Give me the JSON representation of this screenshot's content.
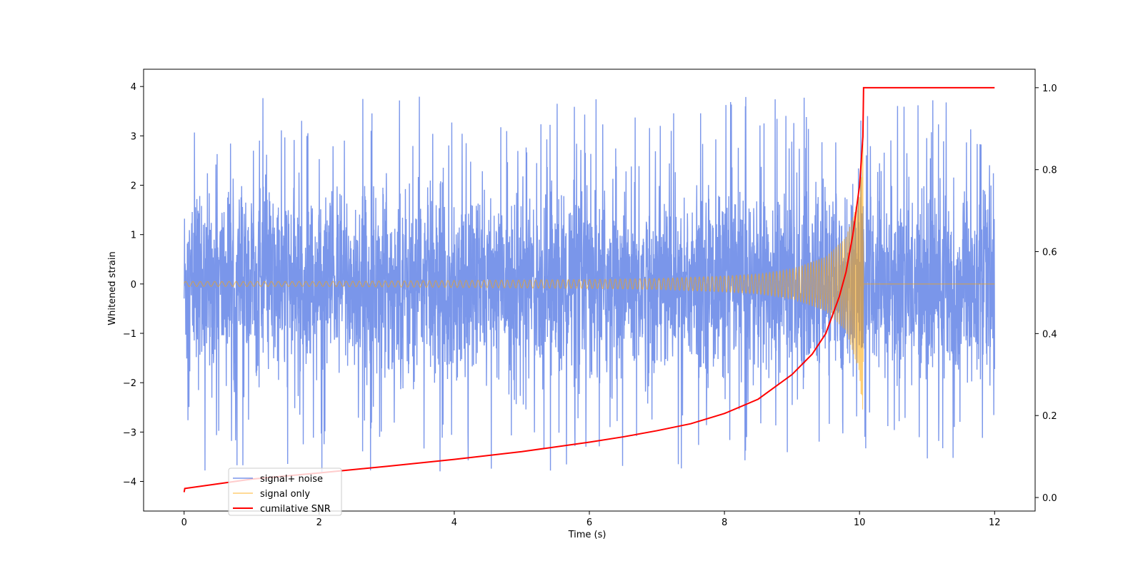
{
  "chart_data": {
    "type": "line",
    "xlabel": "Time (s)",
    "ylabel": "Whitened strain",
    "xlim": [
      -0.6,
      12.6
    ],
    "ylim": [
      -4.6,
      4.35
    ],
    "y2lim": [
      -0.033,
      1.045
    ],
    "xticks": [
      0,
      2,
      4,
      6,
      8,
      10,
      12
    ],
    "yticks": [
      -4,
      -3,
      -2,
      -1,
      0,
      1,
      2,
      3,
      4
    ],
    "y2ticks": [
      0.0,
      0.2,
      0.4,
      0.6,
      0.8,
      1.0
    ],
    "xtick_labels": [
      "0",
      "2",
      "4",
      "6",
      "8",
      "10",
      "12"
    ],
    "ytick_labels": [
      "−4",
      "−3",
      "−2",
      "−1",
      "0",
      "1",
      "2",
      "3",
      "4"
    ],
    "y2tick_labels": [
      "0.0",
      "0.2",
      "0.4",
      "0.6",
      "0.8",
      "1.0"
    ],
    "legend_position": "lower-left",
    "series": [
      {
        "name": "signal+ noise",
        "color": "#4169e1",
        "axis": "left",
        "description_of_shape": "noise band about ±1.5 with spikes to ±3.5-4 over 0-12 s",
        "x_range": [
          0,
          12
        ],
        "typical_amplitude": 1.5,
        "peak_extremes": [
          -4.15,
          3.95
        ]
      },
      {
        "name": "signal only",
        "color": "#ffa500",
        "axis": "left",
        "x": [
          0,
          2,
          4,
          6,
          7,
          8,
          8.5,
          9,
          9.5,
          9.8,
          10.0,
          10.05,
          10.06,
          12
        ],
        "envelope": [
          0.05,
          0.05,
          0.07,
          0.09,
          0.11,
          0.16,
          0.2,
          0.3,
          0.55,
          0.95,
          1.8,
          2.9,
          0.0,
          0.0
        ]
      },
      {
        "name": "cumilative SNR",
        "color": "#ff0000",
        "axis": "right",
        "x": [
          0,
          0.01,
          1,
          2,
          3,
          4,
          5,
          6,
          6.5,
          7,
          7.5,
          8,
          8.5,
          9,
          9.3,
          9.5,
          9.7,
          9.8,
          9.9,
          10.0,
          10.05,
          10.06,
          12
        ],
        "y": [
          0.013,
          0.022,
          0.045,
          0.06,
          0.076,
          0.093,
          0.112,
          0.135,
          0.148,
          0.163,
          0.18,
          0.205,
          0.24,
          0.3,
          0.35,
          0.4,
          0.49,
          0.55,
          0.64,
          0.76,
          0.88,
          1.0,
          1.0
        ]
      }
    ]
  }
}
